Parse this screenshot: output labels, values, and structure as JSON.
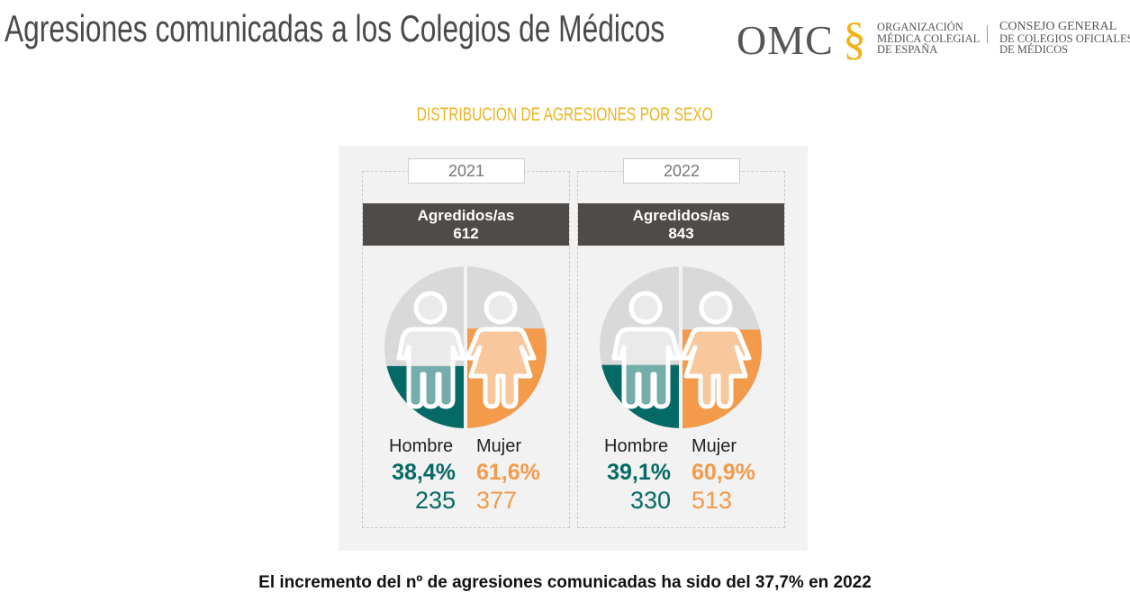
{
  "header": {
    "title": "Agresiones comunicadas a los Colegios de Médicos",
    "logo": {
      "acronym": "OMC",
      "org_lines": [
        "ORGANIZACIÓN",
        "MÉDICA COLEGIAL",
        "DE ESPAÑA"
      ],
      "council_lines": [
        "CONSEJO GENERAL",
        "DE COLEGIOS OFICIALES",
        "DE MÉDICOS"
      ]
    }
  },
  "subtitle": "DISTRIBUCIÓN DE AGRESIONES POR SEXO",
  "colors": {
    "hombre": "#056a66",
    "mujer": "#f39a4b",
    "empty": "#d9d9d9",
    "header_bg": "#4f4b48",
    "subtitle": "#e9b522"
  },
  "chart_data": [
    {
      "type": "pie",
      "title": "2021",
      "header_label": "Agredidos/as",
      "total": "612",
      "categories": [
        "Hombre",
        "Mujer"
      ],
      "percent_labels": [
        "38,4%",
        "61,6%"
      ],
      "count_labels": [
        "235",
        "377"
      ],
      "values": [
        38.4,
        61.6
      ],
      "counts": [
        235,
        377
      ]
    },
    {
      "type": "pie",
      "title": "2022",
      "header_label": "Agredidos/as",
      "total": "843",
      "categories": [
        "Hombre",
        "Mujer"
      ],
      "percent_labels": [
        "39,1%",
        "60,9%"
      ],
      "count_labels": [
        "330",
        "513"
      ],
      "values": [
        39.1,
        60.9
      ],
      "counts": [
        330,
        513
      ]
    }
  ],
  "footer": "El incremento del nº de agresiones comunicadas ha sido del 37,7% en 2022"
}
